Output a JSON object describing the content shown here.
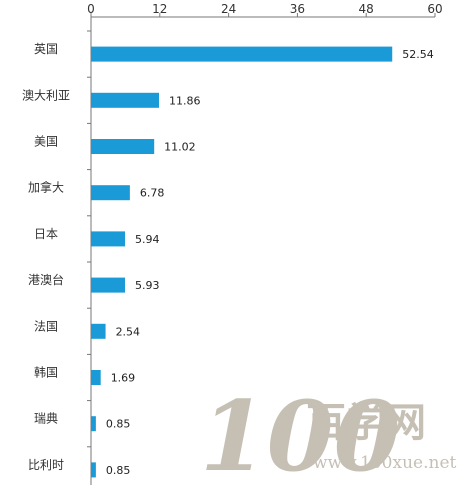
{
  "chart_data": {
    "type": "bar",
    "orientation": "horizontal",
    "categories": [
      "英国",
      "澳大利亚",
      "美国",
      "加拿大",
      "日本",
      "港澳台",
      "法国",
      "韩国",
      "瑞典",
      "比利时"
    ],
    "values": [
      52.54,
      11.86,
      11.02,
      6.78,
      5.94,
      5.93,
      2.54,
      1.69,
      0.85,
      0.85
    ],
    "data_labels": [
      "52.54",
      "11.86",
      "11.02",
      "6.78",
      "5.94",
      "5.93",
      "2.54",
      "1.69",
      "0.85",
      "0.85"
    ],
    "xaxis": {
      "position": "top",
      "ticks": [
        "0",
        "12",
        "24",
        "36",
        "48",
        "60"
      ],
      "xlim": [
        0,
        60
      ]
    },
    "bar_color": "#1a9ad6",
    "grid": false,
    "legend": "none"
  },
  "watermark": {
    "number": "100",
    "cn_text": "百学网",
    "url": "www.100xue.net",
    "color": "#bdb6a8"
  }
}
